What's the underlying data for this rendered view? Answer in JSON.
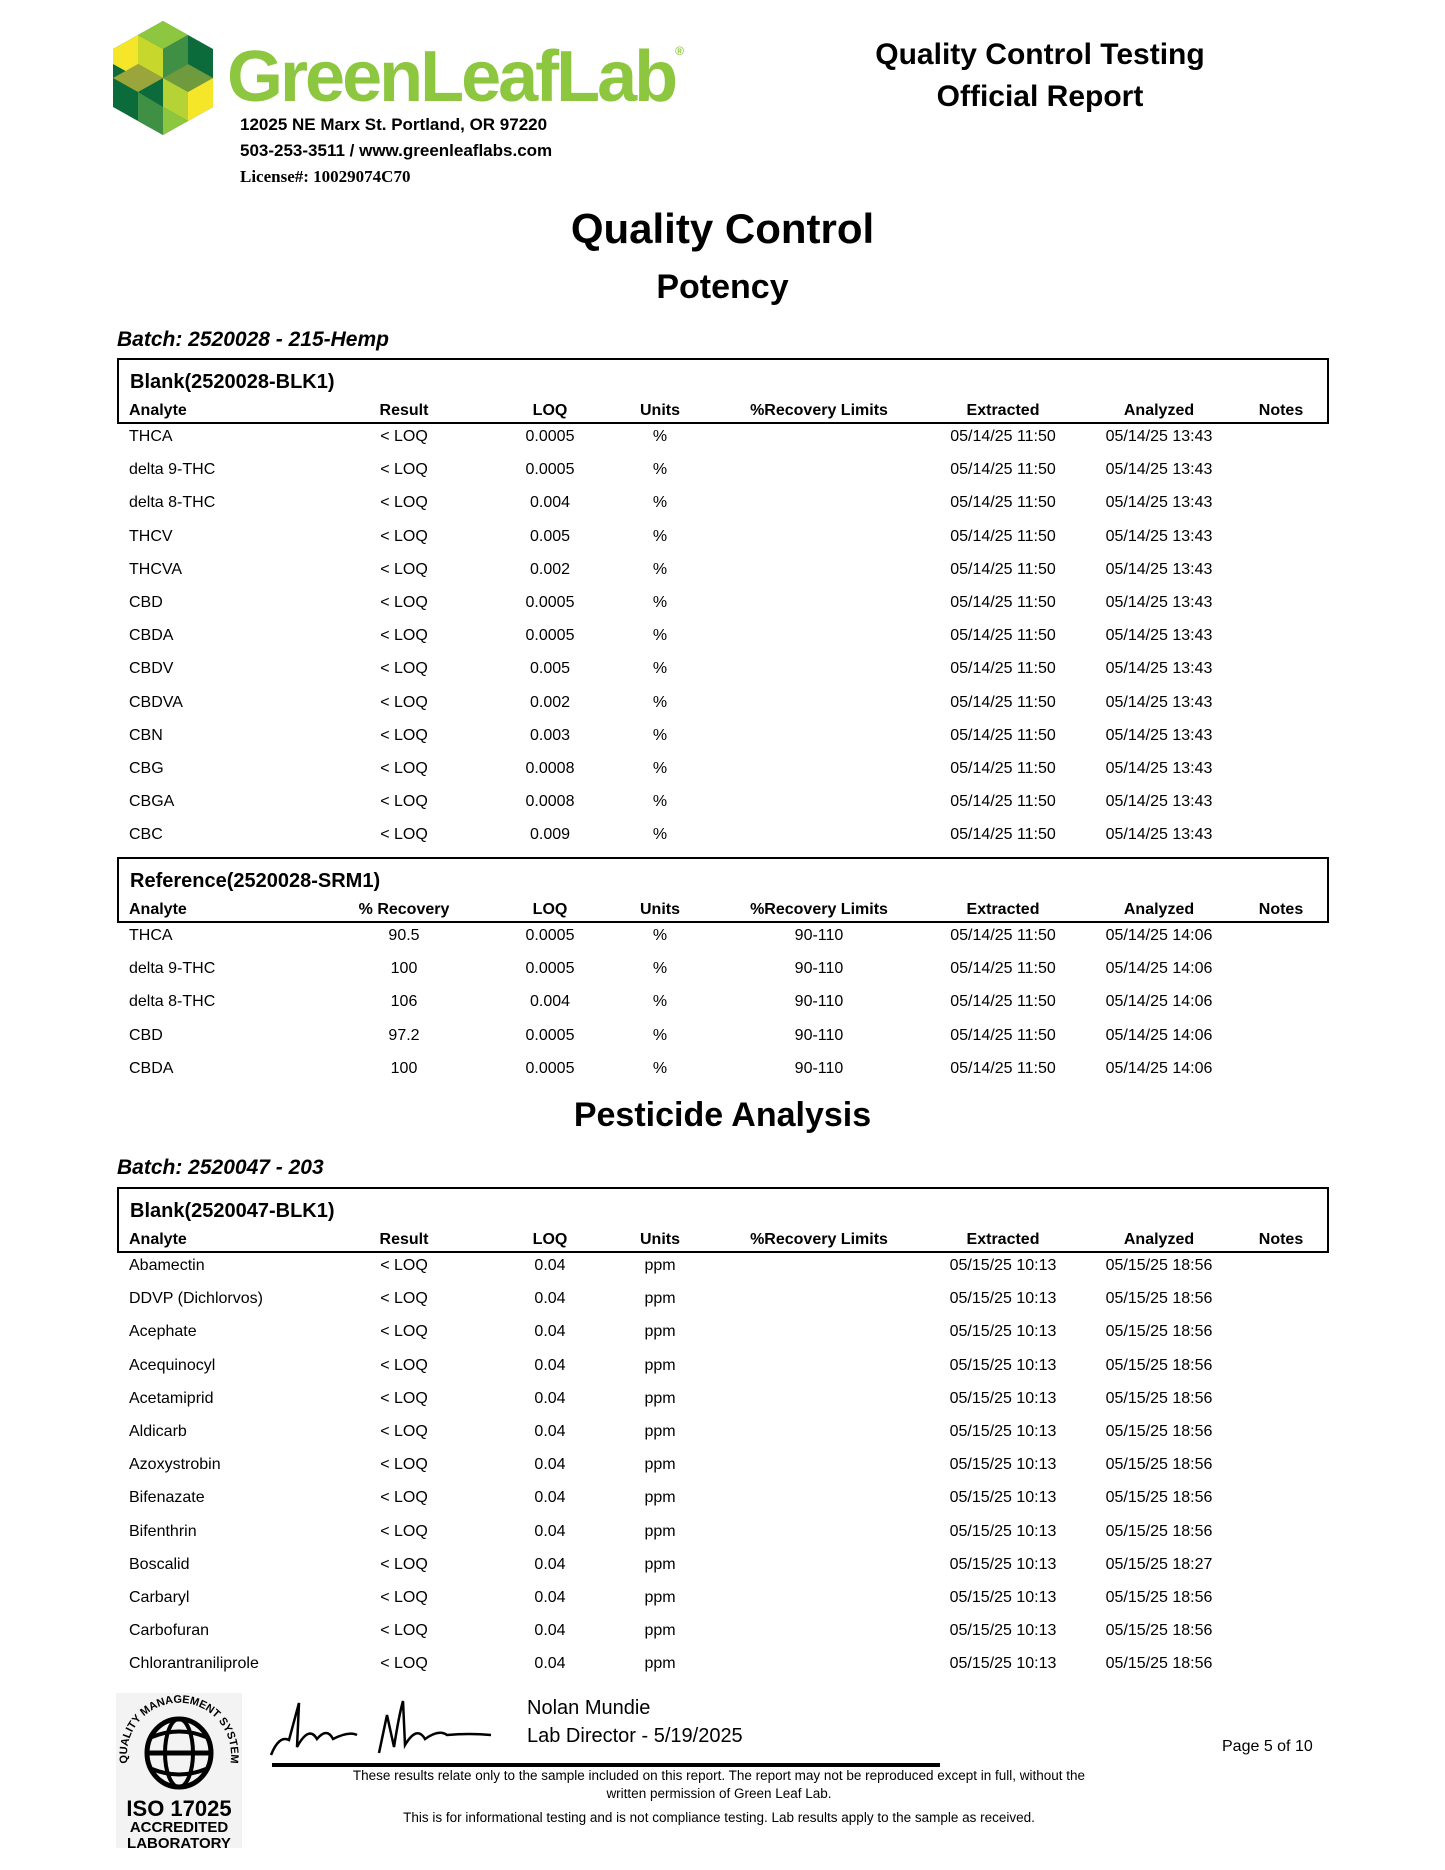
{
  "header": {
    "brand": "GreenLeafLab",
    "brand_color": "#8dc63f",
    "address": "12025 NE Marx St. Portland, OR 97220",
    "contact": "503-253-3511 / www.greenleaflabs.com",
    "license": "License#: 10029074C70",
    "report_title_1": "Quality Control Testing",
    "report_title_2": "Official Report"
  },
  "title": "Quality Control",
  "potency": {
    "heading": "Potency",
    "batch": "Batch:  2520028 - 215-Hemp",
    "blank": {
      "title": "Blank(2520028-BLK1)",
      "columns": [
        "Analyte",
        "Result",
        "LOQ",
        "Units",
        "%Recovery Limits",
        "Extracted",
        "Analyzed",
        "Notes"
      ],
      "rows": [
        [
          "THCA",
          "< LOQ",
          "0.0005",
          "%",
          "",
          "05/14/25  11:50",
          "05/14/25  13:43",
          ""
        ],
        [
          "delta 9-THC",
          "< LOQ",
          "0.0005",
          "%",
          "",
          "05/14/25  11:50",
          "05/14/25  13:43",
          ""
        ],
        [
          "delta 8-THC",
          "< LOQ",
          "0.004",
          "%",
          "",
          "05/14/25  11:50",
          "05/14/25  13:43",
          ""
        ],
        [
          "THCV",
          "< LOQ",
          "0.005",
          "%",
          "",
          "05/14/25  11:50",
          "05/14/25  13:43",
          ""
        ],
        [
          "THCVA",
          "< LOQ",
          "0.002",
          "%",
          "",
          "05/14/25  11:50",
          "05/14/25  13:43",
          ""
        ],
        [
          "CBD",
          "< LOQ",
          "0.0005",
          "%",
          "",
          "05/14/25  11:50",
          "05/14/25  13:43",
          ""
        ],
        [
          "CBDA",
          "< LOQ",
          "0.0005",
          "%",
          "",
          "05/14/25  11:50",
          "05/14/25  13:43",
          ""
        ],
        [
          "CBDV",
          "< LOQ",
          "0.005",
          "%",
          "",
          "05/14/25  11:50",
          "05/14/25  13:43",
          ""
        ],
        [
          "CBDVA",
          "< LOQ",
          "0.002",
          "%",
          "",
          "05/14/25  11:50",
          "05/14/25  13:43",
          ""
        ],
        [
          "CBN",
          "< LOQ",
          "0.003",
          "%",
          "",
          "05/14/25  11:50",
          "05/14/25  13:43",
          ""
        ],
        [
          "CBG",
          "< LOQ",
          "0.0008",
          "%",
          "",
          "05/14/25  11:50",
          "05/14/25  13:43",
          ""
        ],
        [
          "CBGA",
          "< LOQ",
          "0.0008",
          "%",
          "",
          "05/14/25  11:50",
          "05/14/25  13:43",
          ""
        ],
        [
          "CBC",
          "< LOQ",
          "0.009",
          "%",
          "",
          "05/14/25  11:50",
          "05/14/25  13:43",
          ""
        ]
      ]
    },
    "reference": {
      "title": "Reference(2520028-SRM1)",
      "columns": [
        "Analyte",
        "% Recovery",
        "LOQ",
        "Units",
        "%Recovery Limits",
        "Extracted",
        "Analyzed",
        "Notes"
      ],
      "rows": [
        [
          "THCA",
          "90.5",
          "0.0005",
          "%",
          "90-110",
          "05/14/25  11:50",
          "05/14/25  14:06",
          ""
        ],
        [
          "delta 9-THC",
          "100",
          "0.0005",
          "%",
          "90-110",
          "05/14/25  11:50",
          "05/14/25  14:06",
          ""
        ],
        [
          "delta 8-THC",
          "106",
          "0.004",
          "%",
          "90-110",
          "05/14/25  11:50",
          "05/14/25  14:06",
          ""
        ],
        [
          "CBD",
          "97.2",
          "0.0005",
          "%",
          "90-110",
          "05/14/25  11:50",
          "05/14/25  14:06",
          ""
        ],
        [
          "CBDA",
          "100",
          "0.0005",
          "%",
          "90-110",
          "05/14/25  11:50",
          "05/14/25  14:06",
          ""
        ]
      ]
    }
  },
  "pesticide": {
    "heading": "Pesticide Analysis",
    "batch": "Batch:  2520047 - 203",
    "blank": {
      "title": "Blank(2520047-BLK1)",
      "columns": [
        "Analyte",
        "Result",
        "LOQ",
        "Units",
        "%Recovery Limits",
        "Extracted",
        "Analyzed",
        "Notes"
      ],
      "rows": [
        [
          "Abamectin",
          "< LOQ",
          "0.04",
          "ppm",
          "",
          "05/15/25  10:13",
          "05/15/25  18:56",
          ""
        ],
        [
          "DDVP (Dichlorvos)",
          "< LOQ",
          "0.04",
          "ppm",
          "",
          "05/15/25  10:13",
          "05/15/25  18:56",
          ""
        ],
        [
          "Acephate",
          "< LOQ",
          "0.04",
          "ppm",
          "",
          "05/15/25  10:13",
          "05/15/25  18:56",
          ""
        ],
        [
          "Acequinocyl",
          "< LOQ",
          "0.04",
          "ppm",
          "",
          "05/15/25  10:13",
          "05/15/25  18:56",
          ""
        ],
        [
          "Acetamiprid",
          "< LOQ",
          "0.04",
          "ppm",
          "",
          "05/15/25  10:13",
          "05/15/25  18:56",
          ""
        ],
        [
          "Aldicarb",
          "< LOQ",
          "0.04",
          "ppm",
          "",
          "05/15/25  10:13",
          "05/15/25  18:56",
          ""
        ],
        [
          "Azoxystrobin",
          "< LOQ",
          "0.04",
          "ppm",
          "",
          "05/15/25  10:13",
          "05/15/25  18:56",
          ""
        ],
        [
          "Bifenazate",
          "< LOQ",
          "0.04",
          "ppm",
          "",
          "05/15/25  10:13",
          "05/15/25  18:56",
          ""
        ],
        [
          "Bifenthrin",
          "< LOQ",
          "0.04",
          "ppm",
          "",
          "05/15/25  10:13",
          "05/15/25  18:56",
          ""
        ],
        [
          "Boscalid",
          "< LOQ",
          "0.04",
          "ppm",
          "",
          "05/15/25  10:13",
          "05/15/25  18:27",
          ""
        ],
        [
          "Carbaryl",
          "< LOQ",
          "0.04",
          "ppm",
          "",
          "05/15/25  10:13",
          "05/15/25  18:56",
          ""
        ],
        [
          "Carbofuran",
          "< LOQ",
          "0.04",
          "ppm",
          "",
          "05/15/25  10:13",
          "05/15/25  18:56",
          ""
        ],
        [
          "Chlorantraniliprole",
          "< LOQ",
          "0.04",
          "ppm",
          "",
          "05/15/25  10:13",
          "05/15/25  18:56",
          ""
        ]
      ]
    }
  },
  "footer": {
    "iso_ring": "QUALITY MANAGEMENT SYSTEM",
    "iso_1": "ISO 17025",
    "iso_2": "ACCREDITED",
    "iso_3": "LABORATORY",
    "signer": "Nolan Mundie",
    "signer_title": "Lab Director - 5/19/2025",
    "page": "Page 5 of 10",
    "disclaimer_1": "These results relate only to the sample included on this report. The report may not be reproduced except in full, without the",
    "disclaimer_2": "written permission of Green Leaf Lab.",
    "disclaimer_3": "This is for informational testing and is not compliance testing. Lab results apply to the sample as received."
  }
}
